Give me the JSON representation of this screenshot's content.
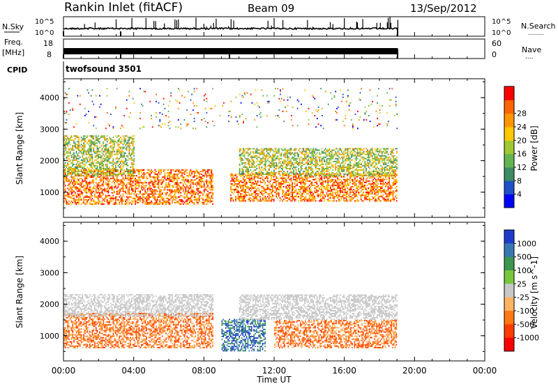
{
  "header": {
    "station": "Rankin Inlet (fitACF)",
    "beam": "Beam 09",
    "date": "13/Sep/2012"
  },
  "time_axis": {
    "label": "Time UT",
    "ticks": [
      "00:00",
      "04:00",
      "08:00",
      "12:00",
      "16:00",
      "20:00",
      "00:00"
    ],
    "range_hours": [
      0,
      24
    ],
    "data_end_hours": 19.1
  },
  "nsky_panel": {
    "left_label": "N.Sky",
    "left_ticks": [
      "10^5",
      "10^0"
    ],
    "right_ticks": [
      "10^5",
      "10^0"
    ],
    "right_label": "N.Search",
    "right_dots": "........"
  },
  "freq_panel": {
    "left_label_1": "Freq.",
    "left_label_2": "[MHz]",
    "left_ticks": [
      "18",
      "8"
    ],
    "right_ticks": [
      "60",
      "0"
    ],
    "right_label": "Nave",
    "right_dots": "...."
  },
  "cpid_panel": {
    "label": "CPID",
    "value": "twofsound 3501"
  },
  "chart_data": [
    {
      "type": "heatmap",
      "quantity": "Power",
      "ylabel": "Slant Range [km]",
      "ylim": [
        200,
        4600
      ],
      "yticks": [
        "1000",
        "2000",
        "3000",
        "4000"
      ],
      "colorbar": {
        "label": "Power [dB]",
        "ticks": [
          "4",
          "8",
          "12",
          "16",
          "20",
          "24",
          "28"
        ],
        "colors": [
          "#0000ff",
          "#2050c8",
          "#3c8c64",
          "#64b450",
          "#a0c832",
          "#ffc800",
          "#ff9600",
          "#ff6400",
          "#ff0000"
        ]
      },
      "regions": [
        {
          "t": [
            0.0,
            8.5
          ],
          "range": [
            600,
            1700
          ],
          "level": "high"
        },
        {
          "t": [
            0.0,
            4.0
          ],
          "range": [
            1500,
            2800
          ],
          "level": "medium"
        },
        {
          "t": [
            9.5,
            19.0
          ],
          "range": [
            700,
            1600
          ],
          "level": "high"
        },
        {
          "t": [
            10.0,
            19.0
          ],
          "range": [
            1500,
            2400
          ],
          "level": "medium"
        },
        {
          "t": [
            0.0,
            19.0
          ],
          "range": [
            3000,
            4300
          ],
          "level": "sparse"
        }
      ]
    },
    {
      "type": "heatmap",
      "quantity": "Velocity",
      "ylabel": "Slant Range [km]",
      "ylim": [
        200,
        4600
      ],
      "yticks": [
        "1000",
        "2000",
        "3000",
        "4000"
      ],
      "colorbar": {
        "label": "Velocity [m s^-1]",
        "ticks": [
          "1000",
          "500",
          "100",
          "25",
          "-25",
          "-100",
          "-500",
          "-1000"
        ],
        "colors": [
          "#1e3ccc",
          "#3a78b4",
          "#3c9650",
          "#78c83c",
          "#c8c8c8",
          "#ffb464",
          "#ff7814",
          "#ff3c00",
          "#ff0000"
        ]
      },
      "regions": [
        {
          "t": [
            0.0,
            8.5
          ],
          "range": [
            600,
            1700
          ],
          "level": "negative"
        },
        {
          "t": [
            0.0,
            8.5
          ],
          "range": [
            1600,
            2300
          ],
          "level": "near-zero"
        },
        {
          "t": [
            9.0,
            11.5
          ],
          "range": [
            500,
            1500
          ],
          "level": "positive"
        },
        {
          "t": [
            12.0,
            19.0
          ],
          "range": [
            600,
            1500
          ],
          "level": "negative"
        },
        {
          "t": [
            10.0,
            19.0
          ],
          "range": [
            1500,
            2300
          ],
          "level": "near-zero"
        }
      ]
    }
  ]
}
